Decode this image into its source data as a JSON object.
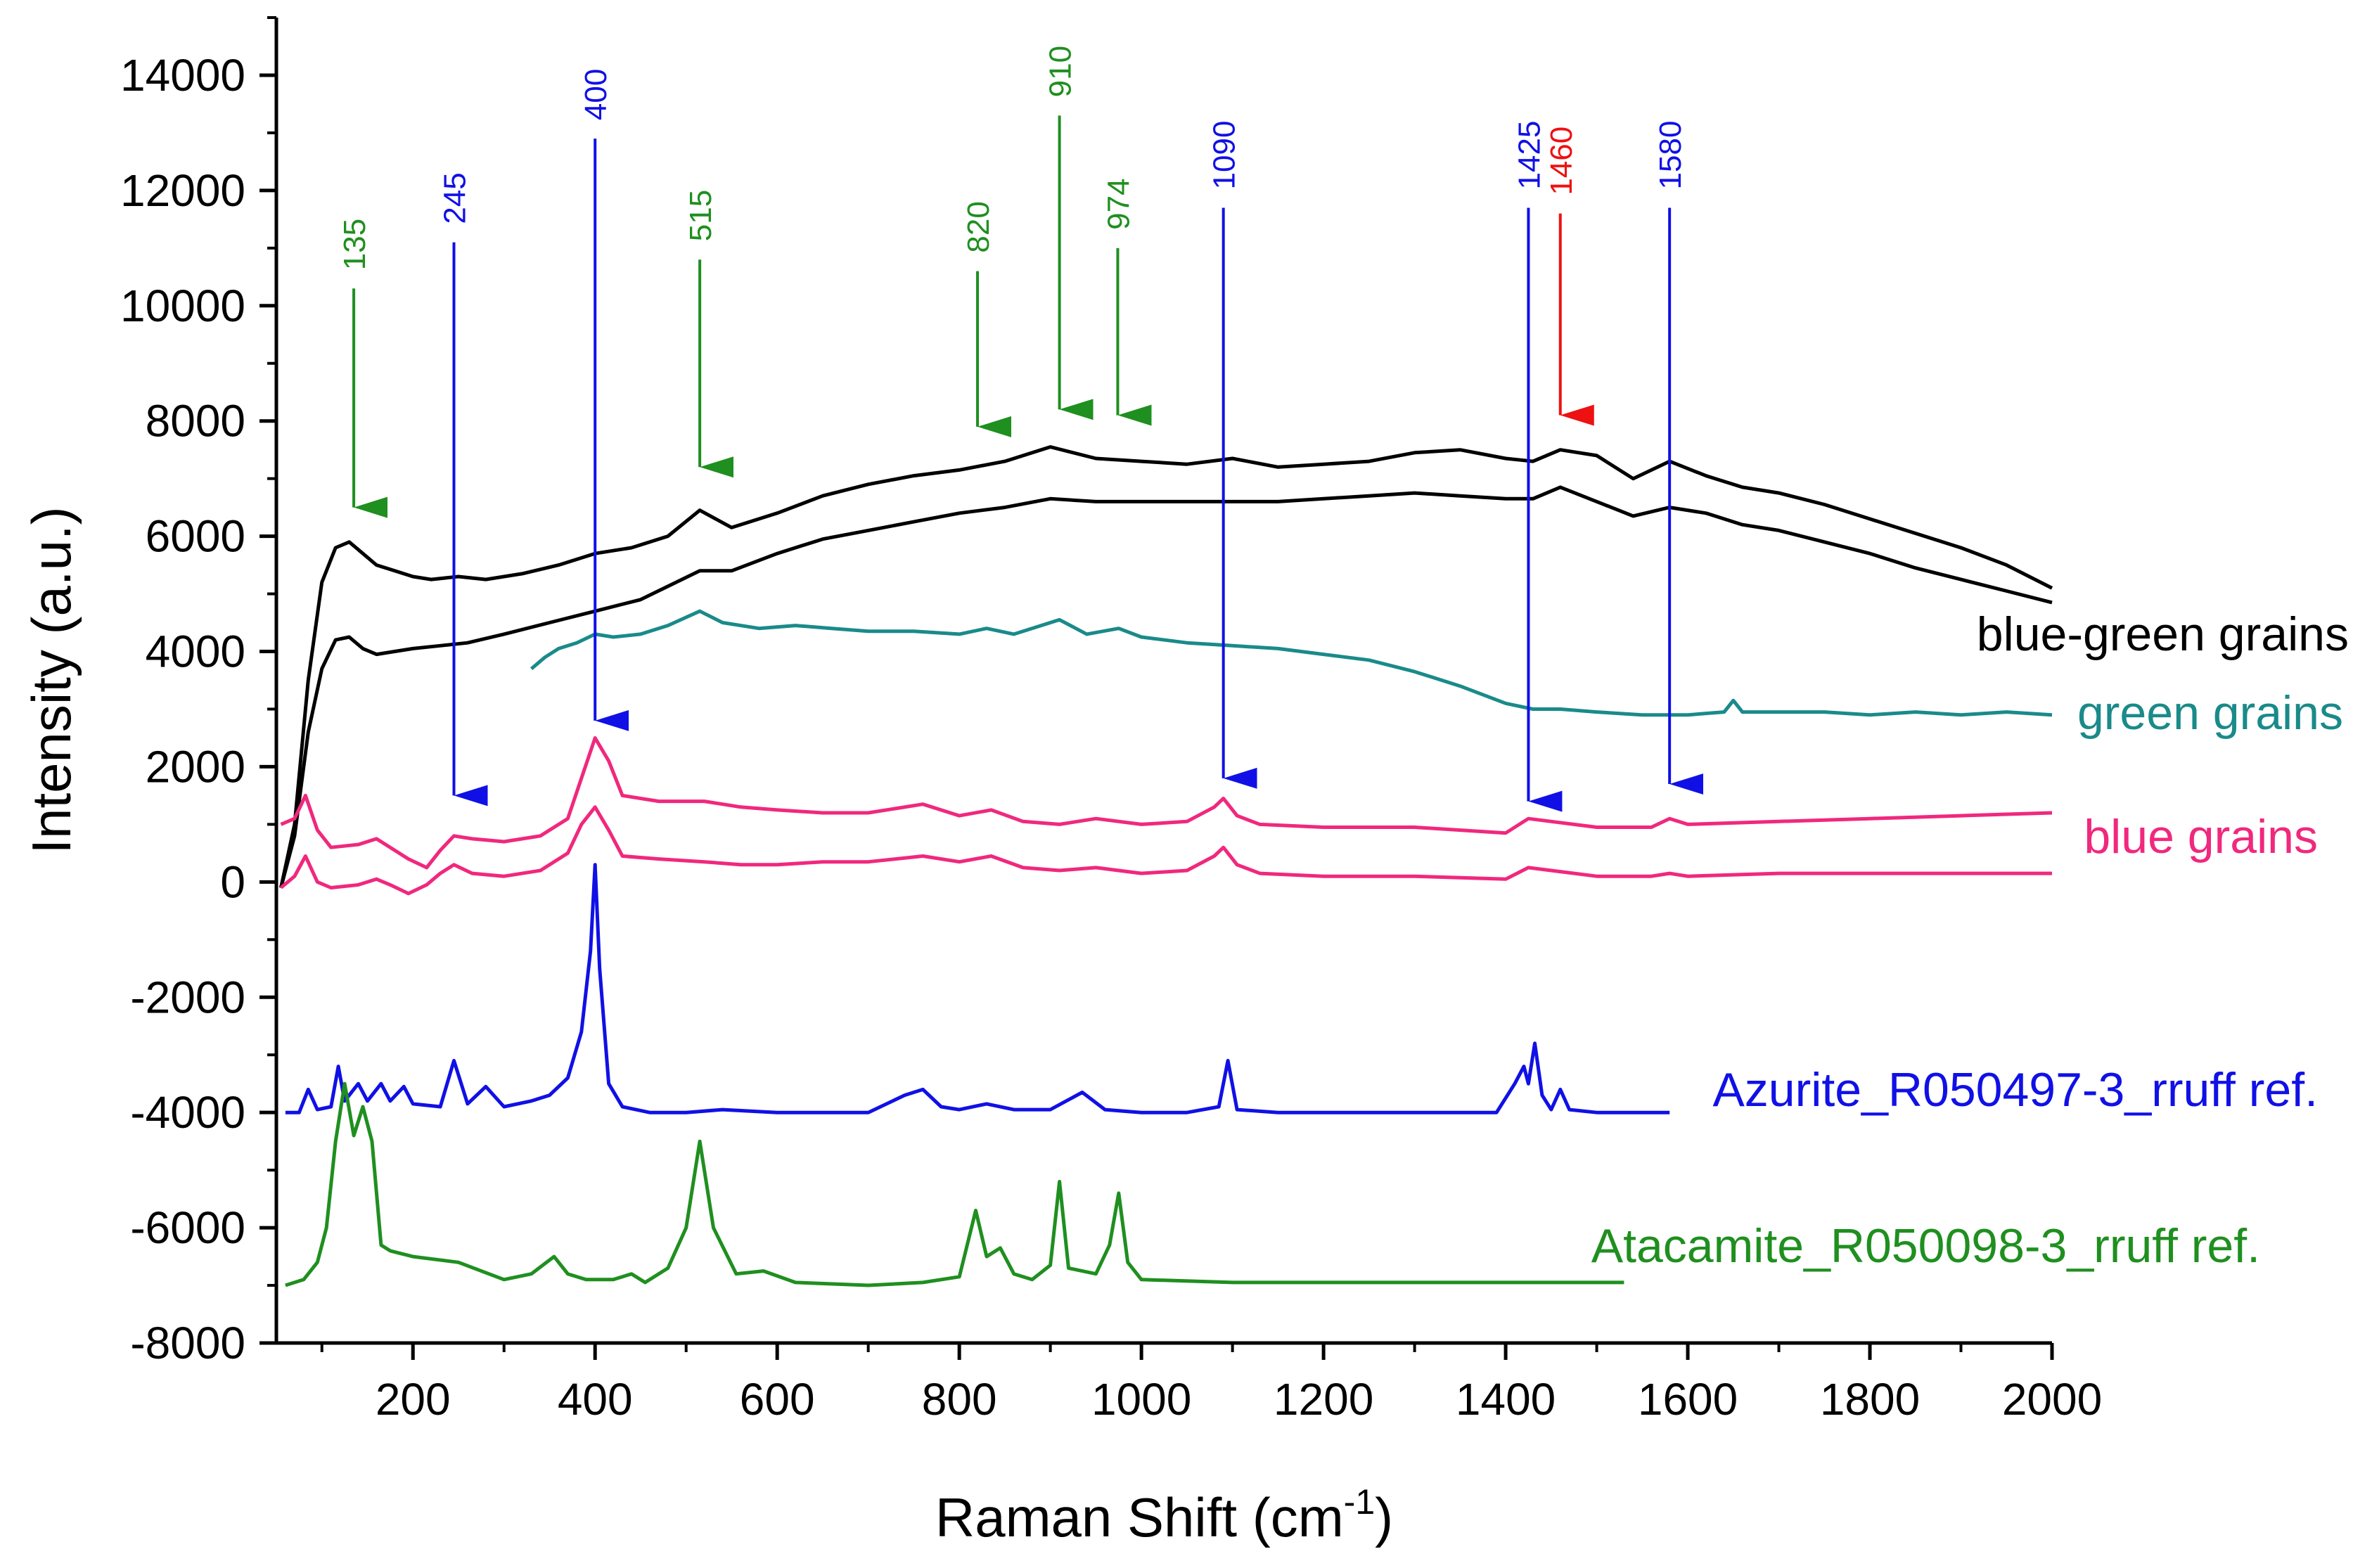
{
  "chart_data": {
    "type": "line",
    "title": "",
    "xlabel_main": "Raman Shift (cm",
    "xlabel_sup": "-1",
    "xlabel_close": ")",
    "ylabel": "Intensity (a.u.)",
    "xlim": [
      50,
      2000
    ],
    "ylim": [
      -8000,
      15000
    ],
    "x_ticks": [
      200,
      400,
      600,
      800,
      1000,
      1200,
      1400,
      1600,
      1800,
      2000
    ],
    "x_tick_labels": [
      "200",
      "400",
      "600",
      "800",
      "1000",
      "1200",
      "1400",
      "1600",
      "1800",
      "2000"
    ],
    "y_ticks": [
      -8000,
      -6000,
      -4000,
      -2000,
      0,
      2000,
      4000,
      6000,
      8000,
      10000,
      12000,
      14000
    ],
    "y_tick_labels": [
      "-8000",
      "-6000",
      "-4000",
      "-2000",
      "0",
      "2000",
      "4000",
      "6000",
      "8000",
      "10000",
      "12000",
      "14000"
    ],
    "series_labels": [
      {
        "name": "blue-green grains",
        "color": "#000000"
      },
      {
        "name": "green grains",
        "color": "#1a8a8a"
      },
      {
        "name": "blue grains",
        "color": "#f0287e"
      },
      {
        "name": "Azurite_R050497-3_rruff ref.",
        "color": "#1010e6"
      },
      {
        "name": "Atacamite_R050098-3_rruff ref.",
        "color": "#1f8f1f"
      }
    ],
    "peak_markers": [
      {
        "label": "135",
        "x": 135,
        "color": "#1f8f1f",
        "top": 10300,
        "tip": 6500
      },
      {
        "label": "245",
        "x": 245,
        "color": "#1010e6",
        "top": 11100,
        "tip": 1500
      },
      {
        "label": "400",
        "x": 400,
        "color": "#1010e6",
        "top": 12900,
        "tip": 2800
      },
      {
        "label": "515",
        "x": 515,
        "color": "#1f8f1f",
        "top": 10800,
        "tip": 7200
      },
      {
        "label": "820",
        "x": 820,
        "color": "#1f8f1f",
        "top": 10600,
        "tip": 7900
      },
      {
        "label": "910",
        "x": 910,
        "color": "#1f8f1f",
        "top": 13300,
        "tip": 8200
      },
      {
        "label": "974",
        "x": 974,
        "color": "#1f8f1f",
        "top": 11000,
        "tip": 8100
      },
      {
        "label": "1090",
        "x": 1090,
        "color": "#1010e6",
        "top": 11700,
        "tip": 1800
      },
      {
        "label": "1425",
        "x": 1425,
        "color": "#1010e6",
        "top": 11700,
        "tip": 1400
      },
      {
        "label": "1460",
        "x": 1460,
        "color": "#ee1111",
        "top": 11600,
        "tip": 8100
      },
      {
        "label": "1580",
        "x": 1580,
        "color": "#1010e6",
        "top": 11700,
        "tip": 1700
      }
    ],
    "series": [
      {
        "name": "blue-green grains (upper)",
        "color": "#000000",
        "x": [
          55,
          70,
          85,
          100,
          115,
          130,
          145,
          160,
          180,
          200,
          220,
          250,
          280,
          320,
          360,
          400,
          440,
          480,
          515,
          550,
          600,
          650,
          700,
          750,
          800,
          850,
          900,
          950,
          1000,
          1050,
          1100,
          1150,
          1200,
          1250,
          1300,
          1350,
          1400,
          1430,
          1460,
          1500,
          1540,
          1580,
          1620,
          1660,
          1700,
          1750,
          1800,
          1850,
          1900,
          1950,
          2000
        ],
        "y": [
          -100,
          1000,
          3500,
          5200,
          5800,
          5900,
          5700,
          5500,
          5400,
          5300,
          5250,
          5300,
          5250,
          5350,
          5500,
          5700,
          5800,
          6000,
          6450,
          6150,
          6400,
          6700,
          6900,
          7050,
          7150,
          7300,
          7550,
          7350,
          7300,
          7250,
          7350,
          7200,
          7250,
          7300,
          7450,
          7500,
          7350,
          7300,
          7500,
          7400,
          7000,
          7300,
          7050,
          6850,
          6750,
          6550,
          6300,
          6050,
          5800,
          5500,
          5100
        ]
      },
      {
        "name": "blue-green grains (lower)",
        "color": "#000000",
        "x": [
          55,
          70,
          85,
          100,
          115,
          130,
          145,
          160,
          180,
          200,
          230,
          260,
          300,
          350,
          400,
          450,
          515,
          550,
          600,
          650,
          700,
          750,
          800,
          850,
          900,
          950,
          1000,
          1050,
          1100,
          1150,
          1200,
          1250,
          1300,
          1350,
          1400,
          1430,
          1460,
          1500,
          1540,
          1580,
          1620,
          1660,
          1700,
          1750,
          1800,
          1850,
          1900,
          1950,
          2000
        ],
        "y": [
          -100,
          800,
          2600,
          3700,
          4200,
          4250,
          4050,
          3950,
          4000,
          4050,
          4100,
          4150,
          4300,
          4500,
          4700,
          4900,
          5400,
          5400,
          5700,
          5950,
          6100,
          6250,
          6400,
          6500,
          6650,
          6600,
          6600,
          6600,
          6600,
          6600,
          6650,
          6700,
          6750,
          6700,
          6650,
          6650,
          6850,
          6600,
          6350,
          6500,
          6400,
          6200,
          6100,
          5900,
          5700,
          5450,
          5250,
          5050,
          4850
        ]
      },
      {
        "name": "green grains",
        "color": "#1a8a8a",
        "x": [
          330,
          345,
          360,
          380,
          400,
          420,
          450,
          480,
          515,
          540,
          580,
          620,
          660,
          700,
          750,
          800,
          830,
          860,
          910,
          940,
          975,
          1000,
          1050,
          1100,
          1150,
          1200,
          1250,
          1300,
          1350,
          1400,
          1430,
          1460,
          1500,
          1550,
          1600,
          1640,
          1650,
          1660,
          1700,
          1750,
          1800,
          1850,
          1900,
          1950,
          2000
        ],
        "y": [
          3700,
          3900,
          4050,
          4150,
          4300,
          4250,
          4300,
          4450,
          4700,
          4500,
          4400,
          4450,
          4400,
          4350,
          4350,
          4300,
          4400,
          4300,
          4550,
          4300,
          4400,
          4250,
          4150,
          4100,
          4050,
          3950,
          3850,
          3650,
          3400,
          3100,
          3000,
          3000,
          2950,
          2900,
          2900,
          2950,
          3150,
          2950,
          2950,
          2950,
          2900,
          2950,
          2900,
          2950,
          2900
        ]
      },
      {
        "name": "blue grains (upper)",
        "color": "#f0287e",
        "x": [
          55,
          70,
          82,
          95,
          110,
          140,
          160,
          175,
          195,
          215,
          230,
          245,
          265,
          300,
          340,
          370,
          385,
          400,
          415,
          430,
          470,
          520,
          560,
          600,
          650,
          700,
          760,
          800,
          835,
          870,
          910,
          950,
          1000,
          1050,
          1080,
          1090,
          1105,
          1130,
          1200,
          1300,
          1400,
          1425,
          1450,
          1500,
          1560,
          1580,
          1600,
          1700,
          1800,
          1900,
          2000
        ],
        "y": [
          1000,
          1100,
          1500,
          900,
          600,
          650,
          750,
          600,
          400,
          250,
          550,
          800,
          750,
          700,
          800,
          1100,
          1800,
          2500,
          2100,
          1500,
          1400,
          1400,
          1300,
          1250,
          1200,
          1200,
          1350,
          1150,
          1250,
          1050,
          1000,
          1100,
          1000,
          1050,
          1300,
          1450,
          1150,
          1000,
          950,
          950,
          850,
          1100,
          1050,
          950,
          950,
          1100,
          1000,
          1050,
          1100,
          1150,
          1200
        ]
      },
      {
        "name": "blue grains (lower)",
        "color": "#f0287e",
        "x": [
          55,
          70,
          82,
          95,
          110,
          140,
          160,
          175,
          195,
          215,
          230,
          245,
          265,
          300,
          340,
          370,
          385,
          400,
          415,
          430,
          470,
          520,
          560,
          600,
          650,
          700,
          760,
          800,
          835,
          870,
          910,
          950,
          1000,
          1050,
          1080,
          1090,
          1105,
          1130,
          1200,
          1300,
          1400,
          1425,
          1450,
          1500,
          1560,
          1580,
          1600,
          1700,
          1800,
          1900,
          2000
        ],
        "y": [
          -100,
          100,
          450,
          0,
          -100,
          -50,
          50,
          -50,
          -200,
          -50,
          150,
          300,
          150,
          100,
          200,
          500,
          1000,
          1300,
          900,
          450,
          400,
          350,
          300,
          300,
          350,
          350,
          450,
          350,
          450,
          250,
          200,
          250,
          150,
          200,
          450,
          600,
          300,
          150,
          100,
          100,
          50,
          250,
          200,
          100,
          100,
          150,
          100,
          150,
          150,
          150,
          150
        ]
      },
      {
        "name": "Azurite_R050497-3_rruff ref.",
        "color": "#1010e6",
        "x": [
          60,
          75,
          85,
          95,
          110,
          118,
          125,
          140,
          150,
          165,
          175,
          190,
          200,
          230,
          245,
          260,
          280,
          300,
          330,
          350,
          370,
          385,
          395,
          400,
          405,
          415,
          430,
          460,
          500,
          540,
          600,
          700,
          740,
          760,
          780,
          800,
          830,
          860,
          900,
          935,
          960,
          1000,
          1050,
          1085,
          1095,
          1105,
          1150,
          1200,
          1300,
          1390,
          1410,
          1420,
          1425,
          1432,
          1440,
          1450,
          1460,
          1470,
          1500,
          1580
        ],
        "y": [
          -4000,
          -4000,
          -3600,
          -3950,
          -3900,
          -3200,
          -3800,
          -3500,
          -3800,
          -3500,
          -3800,
          -3550,
          -3850,
          -3900,
          -3100,
          -3850,
          -3550,
          -3900,
          -3800,
          -3700,
          -3400,
          -2600,
          -1200,
          300,
          -1500,
          -3500,
          -3900,
          -4000,
          -4000,
          -3950,
          -4000,
          -4000,
          -3700,
          -3600,
          -3900,
          -3950,
          -3850,
          -3950,
          -3950,
          -3650,
          -3950,
          -4000,
          -4000,
          -3900,
          -3100,
          -3950,
          -4000,
          -4000,
          -4000,
          -4000,
          -3500,
          -3200,
          -3500,
          -2800,
          -3700,
          -3950,
          -3600,
          -3950,
          -4000,
          -4000
        ]
      },
      {
        "name": "Atacamite_R050098-3_rruff ref.",
        "color": "#1f8f1f",
        "x": [
          60,
          80,
          95,
          105,
          115,
          125,
          135,
          145,
          155,
          165,
          175,
          200,
          250,
          300,
          330,
          355,
          370,
          390,
          420,
          440,
          455,
          480,
          500,
          515,
          530,
          555,
          585,
          620,
          700,
          760,
          800,
          818,
          830,
          845,
          860,
          880,
          900,
          910,
          920,
          950,
          965,
          975,
          985,
          1000,
          1100,
          1200,
          1300,
          1400,
          1500,
          1530
        ],
        "y": [
          -7000,
          -6900,
          -6600,
          -6000,
          -4500,
          -3500,
          -4400,
          -3900,
          -4500,
          -6300,
          -6400,
          -6500,
          -6600,
          -6900,
          -6800,
          -6500,
          -6800,
          -6900,
          -6900,
          -6800,
          -6950,
          -6700,
          -6000,
          -4500,
          -6000,
          -6800,
          -6750,
          -6950,
          -7000,
          -6950,
          -6850,
          -5700,
          -6500,
          -6350,
          -6800,
          -6900,
          -6650,
          -5200,
          -6700,
          -6800,
          -6300,
          -5400,
          -6600,
          -6900,
          -6950,
          -6950,
          -6950,
          -6950,
          -6950,
          -6950
        ]
      }
    ]
  }
}
